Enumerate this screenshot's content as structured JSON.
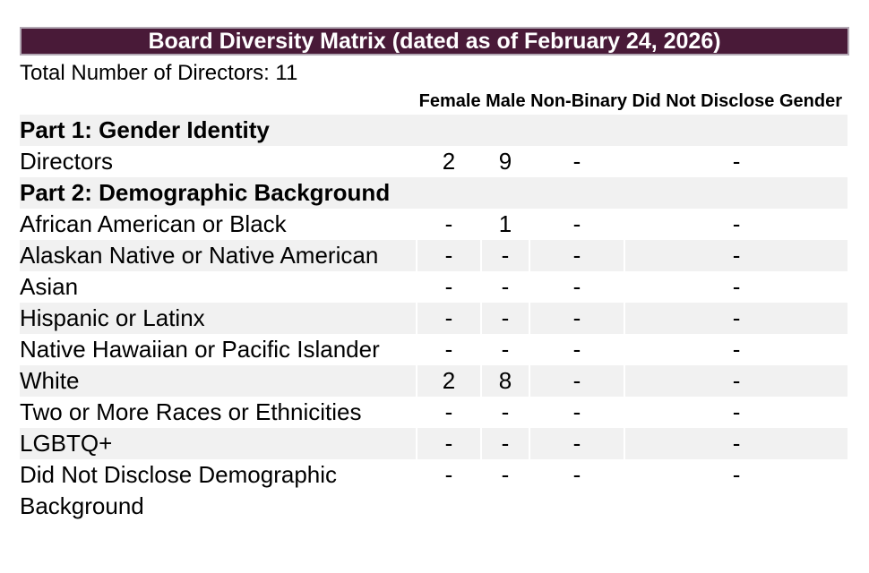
{
  "title_bar": {
    "text": "Board Diversity Matrix (dated as of February 24, 2026)"
  },
  "summary": {
    "total_directors_text": "Total Number of Directors: 11",
    "total_directors": 11
  },
  "colors": {
    "header_bar": "#491A38",
    "header_bar_border": "#B3A9B4",
    "header_bar_text": "#FFFFFF",
    "row_shade": "#F1F1F1",
    "text": "#000000"
  },
  "table": {
    "gender_header_text": "Female Male Non-Binary Did Not Disclose Gender",
    "columns": [
      "Female",
      "Male",
      "Non-Binary",
      "Did Not Disclose Gender"
    ],
    "rows": [
      {
        "label": "Part 1: Gender Identity",
        "section": true,
        "shaded": true
      },
      {
        "label": "Directors",
        "section": false,
        "shaded": false,
        "values": [
          "2",
          "9",
          "-",
          "-"
        ]
      },
      {
        "label": "Part 2: Demographic Background",
        "section": true,
        "shaded": true
      },
      {
        "label": "African American or Black",
        "section": false,
        "shaded": false,
        "values": [
          "-",
          "1",
          "-",
          "-"
        ]
      },
      {
        "label": "Alaskan Native or Native American",
        "section": false,
        "shaded": true,
        "values": [
          "-",
          "-",
          "-",
          "-"
        ]
      },
      {
        "label": "Asian",
        "section": false,
        "shaded": false,
        "values": [
          "-",
          "-",
          "-",
          "-"
        ]
      },
      {
        "label": "Hispanic or Latinx",
        "section": false,
        "shaded": true,
        "values": [
          "-",
          "-",
          "-",
          "-"
        ]
      },
      {
        "label": "Native Hawaiian or Pacific Islander",
        "section": false,
        "shaded": false,
        "values": [
          "-",
          "-",
          "-",
          "-"
        ]
      },
      {
        "label": "White",
        "section": false,
        "shaded": true,
        "values": [
          "2",
          "8",
          "-",
          "-"
        ]
      },
      {
        "label": "Two or More Races or Ethnicities",
        "section": false,
        "shaded": false,
        "values": [
          "-",
          "-",
          "-",
          "-"
        ]
      },
      {
        "label": "LGBTQ+",
        "section": false,
        "shaded": true,
        "values": [
          "-",
          "-",
          "-",
          "-"
        ]
      },
      {
        "label": "Did Not Disclose Demographic Background",
        "section": false,
        "shaded": false,
        "values": [
          "-",
          "-",
          "-",
          "-"
        ]
      }
    ]
  }
}
